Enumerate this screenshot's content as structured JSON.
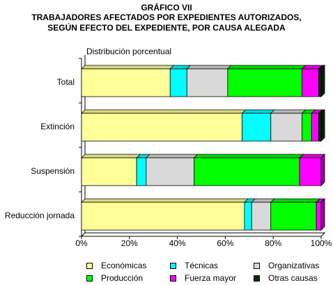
{
  "chart_data": {
    "type": "bar",
    "orientation": "horizontal",
    "stacked": "percent",
    "title_lines": [
      "GRÁFICO VII",
      "TRABAJADORES AFECTADOS POR EXPEDIENTES AUTORIZADOS,",
      "SEGÚN EFECTO DEL EXPEDIENTE, POR CAUSA ALEGADA"
    ],
    "subtitle": "Distribución porcentual",
    "categories": [
      "Total",
      "Extinción",
      "Suspensión",
      "Reducción jornada"
    ],
    "series": [
      {
        "name": "Económicas",
        "color": "#ffff99",
        "values": [
          37,
          67,
          23,
          68
        ]
      },
      {
        "name": "Técnicas",
        "color": "#00ffff",
        "values": [
          7,
          12,
          4,
          3
        ]
      },
      {
        "name": "Organizativas",
        "color": "#d9d9d9",
        "values": [
          17,
          13,
          20,
          8
        ]
      },
      {
        "name": "Producción",
        "color": "#00ff00",
        "values": [
          31,
          4,
          44,
          19
        ]
      },
      {
        "name": "Fuerza mayor",
        "color": "#ff00ff",
        "values": [
          7,
          3,
          9,
          2
        ]
      },
      {
        "name": "Otras causas",
        "color": "#003300",
        "values": [
          1,
          1,
          0,
          0
        ]
      }
    ],
    "xticks": [
      "0%",
      "20%",
      "40%",
      "60%",
      "80%",
      "100%"
    ],
    "xlim": [
      0,
      100
    ],
    "grid": false,
    "legend": "bottom",
    "three_d": true
  }
}
